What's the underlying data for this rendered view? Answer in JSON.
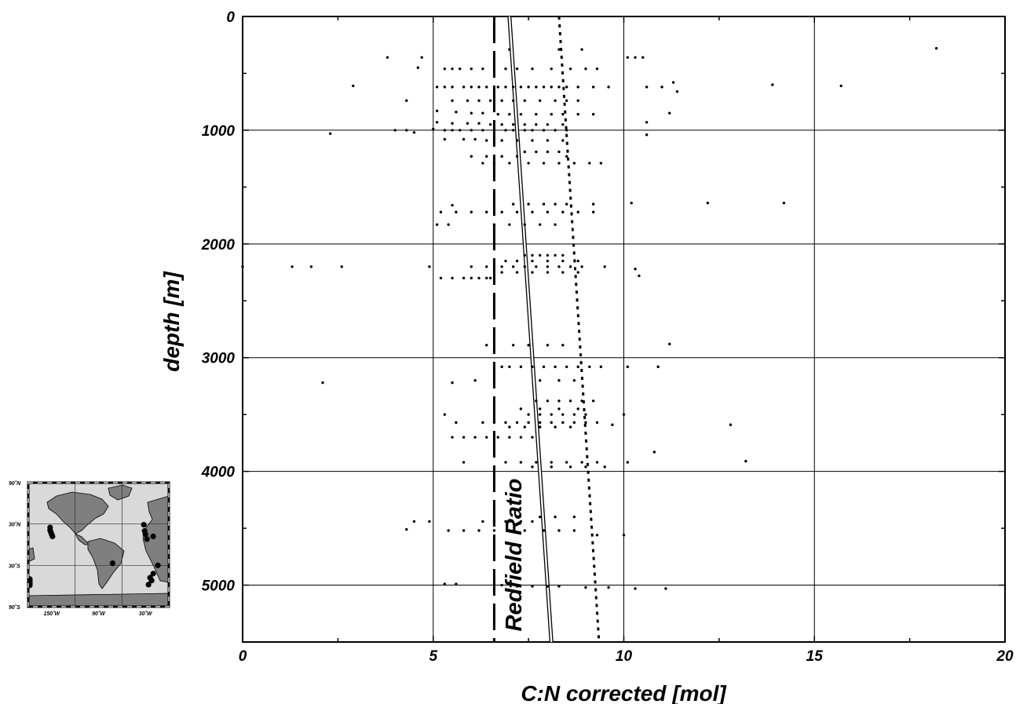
{
  "chart_data": {
    "type": "scatter",
    "xlabel": "C:N corrected [mol]",
    "ylabel": "depth [m]",
    "xlim": [
      0,
      20
    ],
    "ylim": [
      5500,
      0
    ],
    "x_ticks": [
      0,
      5,
      10,
      15,
      20
    ],
    "y_ticks": [
      0,
      1000,
      2000,
      3000,
      4000,
      5000
    ],
    "grid": true,
    "annotation": "Redfield Ratio",
    "lines": [
      {
        "style": "dashed",
        "x": [
          6.6,
          6.6
        ],
        "y": [
          0,
          5500
        ]
      },
      {
        "style": "double",
        "x": [
          7.0,
          8.1
        ],
        "y": [
          0,
          5500
        ]
      },
      {
        "style": "dotted",
        "x": [
          8.3,
          9.35
        ],
        "y": [
          0,
          5500
        ]
      }
    ],
    "points": [
      [
        18.2,
        280
      ],
      [
        3.8,
        360
      ],
      [
        4.7,
        360
      ],
      [
        10.1,
        360
      ],
      [
        10.3,
        360
      ],
      [
        10.5,
        360
      ],
      [
        7.0,
        290
      ],
      [
        8.3,
        290
      ],
      [
        8.9,
        290
      ],
      [
        4.6,
        450
      ],
      [
        5.3,
        460
      ],
      [
        5.5,
        460
      ],
      [
        5.7,
        460
      ],
      [
        6.0,
        460
      ],
      [
        6.3,
        460
      ],
      [
        6.9,
        460
      ],
      [
        7.2,
        460
      ],
      [
        7.6,
        460
      ],
      [
        8.1,
        460
      ],
      [
        8.6,
        460
      ],
      [
        9.0,
        460
      ],
      [
        9.3,
        460
      ],
      [
        2.9,
        610
      ],
      [
        5.1,
        620
      ],
      [
        5.3,
        620
      ],
      [
        5.5,
        620
      ],
      [
        5.8,
        620
      ],
      [
        6.0,
        620
      ],
      [
        6.2,
        620
      ],
      [
        6.4,
        620
      ],
      [
        6.7,
        620
      ],
      [
        6.9,
        620
      ],
      [
        7.1,
        620
      ],
      [
        7.3,
        620
      ],
      [
        7.5,
        620
      ],
      [
        7.7,
        620
      ],
      [
        7.9,
        620
      ],
      [
        8.1,
        620
      ],
      [
        8.3,
        620
      ],
      [
        8.5,
        620
      ],
      [
        8.8,
        620
      ],
      [
        9.2,
        620
      ],
      [
        9.6,
        620
      ],
      [
        10.6,
        620
      ],
      [
        11.0,
        620
      ],
      [
        11.3,
        580
      ],
      [
        11.4,
        660
      ],
      [
        13.9,
        600
      ],
      [
        15.7,
        610
      ],
      [
        4.3,
        740
      ],
      [
        5.5,
        740
      ],
      [
        5.9,
        740
      ],
      [
        6.2,
        740
      ],
      [
        6.5,
        740
      ],
      [
        6.8,
        740
      ],
      [
        7.1,
        740
      ],
      [
        7.4,
        740
      ],
      [
        7.8,
        740
      ],
      [
        8.2,
        740
      ],
      [
        8.5,
        740
      ],
      [
        8.8,
        740
      ],
      [
        5.1,
        830
      ],
      [
        5.6,
        840
      ],
      [
        6.0,
        850
      ],
      [
        6.3,
        850
      ],
      [
        6.7,
        860
      ],
      [
        7.0,
        860
      ],
      [
        7.3,
        860
      ],
      [
        7.7,
        860
      ],
      [
        8.1,
        860
      ],
      [
        8.4,
        860
      ],
      [
        8.8,
        860
      ],
      [
        9.2,
        860
      ],
      [
        11.2,
        850
      ],
      [
        5.1,
        930
      ],
      [
        5.5,
        940
      ],
      [
        5.9,
        940
      ],
      [
        6.2,
        940
      ],
      [
        6.5,
        950
      ],
      [
        6.8,
        950
      ],
      [
        7.1,
        950
      ],
      [
        7.4,
        950
      ],
      [
        7.7,
        950
      ],
      [
        8.0,
        950
      ],
      [
        8.4,
        950
      ],
      [
        10.6,
        930
      ],
      [
        2.3,
        1030
      ],
      [
        4.0,
        1000
      ],
      [
        4.3,
        1000
      ],
      [
        4.5,
        1020
      ],
      [
        5.0,
        990
      ],
      [
        5.3,
        1000
      ],
      [
        5.5,
        1000
      ],
      [
        5.7,
        1000
      ],
      [
        6.0,
        1000
      ],
      [
        6.3,
        1000
      ],
      [
        6.6,
        1000
      ],
      [
        6.9,
        1000
      ],
      [
        7.1,
        1000
      ],
      [
        7.4,
        1000
      ],
      [
        7.6,
        1000
      ],
      [
        7.9,
        1000
      ],
      [
        8.2,
        1000
      ],
      [
        8.5,
        1000
      ],
      [
        10.6,
        1040
      ],
      [
        5.3,
        1080
      ],
      [
        5.8,
        1080
      ],
      [
        6.1,
        1080
      ],
      [
        6.4,
        1090
      ],
      [
        6.8,
        1090
      ],
      [
        7.2,
        1090
      ],
      [
        7.6,
        1090
      ],
      [
        8.0,
        1090
      ],
      [
        8.4,
        1090
      ],
      [
        7.4,
        1190
      ],
      [
        7.7,
        1190
      ],
      [
        8.0,
        1190
      ],
      [
        8.3,
        1190
      ],
      [
        6.0,
        1230
      ],
      [
        6.4,
        1230
      ],
      [
        6.8,
        1230
      ],
      [
        7.2,
        1230
      ],
      [
        8.5,
        1230
      ],
      [
        6.3,
        1290
      ],
      [
        6.6,
        1290
      ],
      [
        7.0,
        1290
      ],
      [
        7.5,
        1290
      ],
      [
        7.9,
        1290
      ],
      [
        8.3,
        1290
      ],
      [
        8.7,
        1290
      ],
      [
        9.1,
        1290
      ],
      [
        9.4,
        1290
      ],
      [
        10.2,
        1640
      ],
      [
        12.2,
        1640
      ],
      [
        14.2,
        1640
      ],
      [
        7.1,
        1650
      ],
      [
        7.5,
        1650
      ],
      [
        7.9,
        1650
      ],
      [
        8.2,
        1650
      ],
      [
        8.5,
        1650
      ],
      [
        9.2,
        1650
      ],
      [
        5.5,
        1660
      ],
      [
        5.2,
        1720
      ],
      [
        5.6,
        1720
      ],
      [
        6.0,
        1720
      ],
      [
        6.4,
        1720
      ],
      [
        6.8,
        1720
      ],
      [
        7.2,
        1720
      ],
      [
        7.6,
        1720
      ],
      [
        8.0,
        1720
      ],
      [
        8.4,
        1720
      ],
      [
        8.8,
        1720
      ],
      [
        9.2,
        1720
      ],
      [
        5.1,
        1830
      ],
      [
        5.4,
        1830
      ],
      [
        6.6,
        1830
      ],
      [
        7.0,
        1830
      ],
      [
        7.4,
        1830
      ],
      [
        7.8,
        1830
      ],
      [
        8.2,
        1830
      ],
      [
        7.4,
        2100
      ],
      [
        7.6,
        2100
      ],
      [
        7.8,
        2100
      ],
      [
        8.0,
        2100
      ],
      [
        8.2,
        2100
      ],
      [
        8.4,
        2100
      ],
      [
        6.9,
        2150
      ],
      [
        7.2,
        2150
      ],
      [
        7.6,
        2150
      ],
      [
        8.0,
        2150
      ],
      [
        8.4,
        2150
      ],
      [
        8.8,
        2150
      ],
      [
        0.0,
        2200
      ],
      [
        1.3,
        2200
      ],
      [
        1.8,
        2200
      ],
      [
        2.6,
        2200
      ],
      [
        4.9,
        2200
      ],
      [
        6.0,
        2200
      ],
      [
        6.4,
        2200
      ],
      [
        6.8,
        2200
      ],
      [
        7.1,
        2200
      ],
      [
        7.4,
        2200
      ],
      [
        7.7,
        2200
      ],
      [
        8.0,
        2200
      ],
      [
        8.3,
        2200
      ],
      [
        8.6,
        2200
      ],
      [
        8.9,
        2200
      ],
      [
        9.5,
        2200
      ],
      [
        10.3,
        2220
      ],
      [
        6.8,
        2250
      ],
      [
        7.2,
        2250
      ],
      [
        7.6,
        2250
      ],
      [
        8.0,
        2250
      ],
      [
        8.4,
        2250
      ],
      [
        8.8,
        2250
      ],
      [
        10.4,
        2280
      ],
      [
        5.2,
        2300
      ],
      [
        5.5,
        2300
      ],
      [
        5.8,
        2300
      ],
      [
        6.0,
        2300
      ],
      [
        6.2,
        2300
      ],
      [
        6.4,
        2300
      ],
      [
        6.5,
        2300
      ],
      [
        6.4,
        2890
      ],
      [
        7.1,
        2890
      ],
      [
        7.5,
        2890
      ],
      [
        8.0,
        2890
      ],
      [
        8.4,
        2890
      ],
      [
        11.2,
        2880
      ],
      [
        6.8,
        3080
      ],
      [
        7.0,
        3080
      ],
      [
        7.3,
        3080
      ],
      [
        7.6,
        3080
      ],
      [
        7.9,
        3080
      ],
      [
        8.2,
        3080
      ],
      [
        8.5,
        3080
      ],
      [
        8.8,
        3080
      ],
      [
        9.1,
        3080
      ],
      [
        9.4,
        3080
      ],
      [
        10.1,
        3080
      ],
      [
        10.9,
        3080
      ],
      [
        2.1,
        3220
      ],
      [
        5.5,
        3220
      ],
      [
        6.1,
        3200
      ],
      [
        7.8,
        3200
      ],
      [
        8.3,
        3200
      ],
      [
        8.7,
        3200
      ],
      [
        7.7,
        3380
      ],
      [
        8.0,
        3380
      ],
      [
        8.3,
        3380
      ],
      [
        8.6,
        3380
      ],
      [
        8.9,
        3380
      ],
      [
        9.2,
        3380
      ],
      [
        7.3,
        3450
      ],
      [
        7.8,
        3450
      ],
      [
        8.3,
        3450
      ],
      [
        8.8,
        3450
      ],
      [
        5.3,
        3500
      ],
      [
        7.5,
        3500
      ],
      [
        7.8,
        3500
      ],
      [
        8.1,
        3500
      ],
      [
        8.4,
        3500
      ],
      [
        8.7,
        3500
      ],
      [
        9.0,
        3500
      ],
      [
        10.0,
        3500
      ],
      [
        5.6,
        3570
      ],
      [
        6.3,
        3570
      ],
      [
        6.6,
        3570
      ],
      [
        6.9,
        3570
      ],
      [
        7.2,
        3570
      ],
      [
        7.5,
        3570
      ],
      [
        7.8,
        3570
      ],
      [
        8.1,
        3570
      ],
      [
        8.4,
        3570
      ],
      [
        8.7,
        3570
      ],
      [
        9.0,
        3570
      ],
      [
        9.3,
        3570
      ],
      [
        9.7,
        3590
      ],
      [
        12.8,
        3590
      ],
      [
        7.0,
        3610
      ],
      [
        7.4,
        3610
      ],
      [
        7.8,
        3610
      ],
      [
        8.2,
        3610
      ],
      [
        8.6,
        3610
      ],
      [
        5.5,
        3700
      ],
      [
        5.8,
        3700
      ],
      [
        6.1,
        3700
      ],
      [
        6.4,
        3700
      ],
      [
        6.7,
        3700
      ],
      [
        7.0,
        3700
      ],
      [
        7.3,
        3700
      ],
      [
        7.6,
        3700
      ],
      [
        10.8,
        3830
      ],
      [
        5.8,
        3920
      ],
      [
        6.9,
        3920
      ],
      [
        7.3,
        3920
      ],
      [
        7.7,
        3920
      ],
      [
        8.1,
        3920
      ],
      [
        8.5,
        3920
      ],
      [
        8.9,
        3920
      ],
      [
        9.3,
        3920
      ],
      [
        10.1,
        3920
      ],
      [
        13.2,
        3910
      ],
      [
        7.6,
        3960
      ],
      [
        8.1,
        3960
      ],
      [
        8.6,
        3960
      ],
      [
        9.0,
        3960
      ],
      [
        9.5,
        3960
      ],
      [
        7.8,
        4400
      ],
      [
        8.2,
        4400
      ],
      [
        8.7,
        4400
      ],
      [
        4.5,
        4440
      ],
      [
        4.9,
        4440
      ],
      [
        6.3,
        4440
      ],
      [
        6.6,
        4440
      ],
      [
        6.9,
        4440
      ],
      [
        7.3,
        4440
      ],
      [
        7.6,
        4440
      ],
      [
        4.3,
        4510
      ],
      [
        5.4,
        4520
      ],
      [
        5.8,
        4520
      ],
      [
        6.2,
        4520
      ],
      [
        6.6,
        4520
      ],
      [
        7.0,
        4520
      ],
      [
        7.4,
        4520
      ],
      [
        7.9,
        4520
      ],
      [
        8.3,
        4520
      ],
      [
        8.7,
        4520
      ],
      [
        9.3,
        4560
      ],
      [
        10.0,
        4560
      ],
      [
        5.3,
        4990
      ],
      [
        5.6,
        4990
      ],
      [
        6.8,
        5000
      ],
      [
        7.2,
        5010
      ],
      [
        7.6,
        5010
      ],
      [
        8.0,
        5010
      ],
      [
        8.3,
        5010
      ],
      [
        9.0,
        5020
      ],
      [
        9.6,
        5020
      ],
      [
        10.3,
        5030
      ],
      [
        11.1,
        5030
      ]
    ]
  },
  "inset_map": {
    "lat_labels": [
      "90˚N",
      "30˚N",
      "30˚S",
      "90˚S"
    ],
    "lon_labels": [
      "150˚W",
      "90˚W",
      "30˚W"
    ],
    "colors": {
      "ocean": "#d9d9d9",
      "land": "#7f7f7f",
      "station": "#000000"
    }
  }
}
